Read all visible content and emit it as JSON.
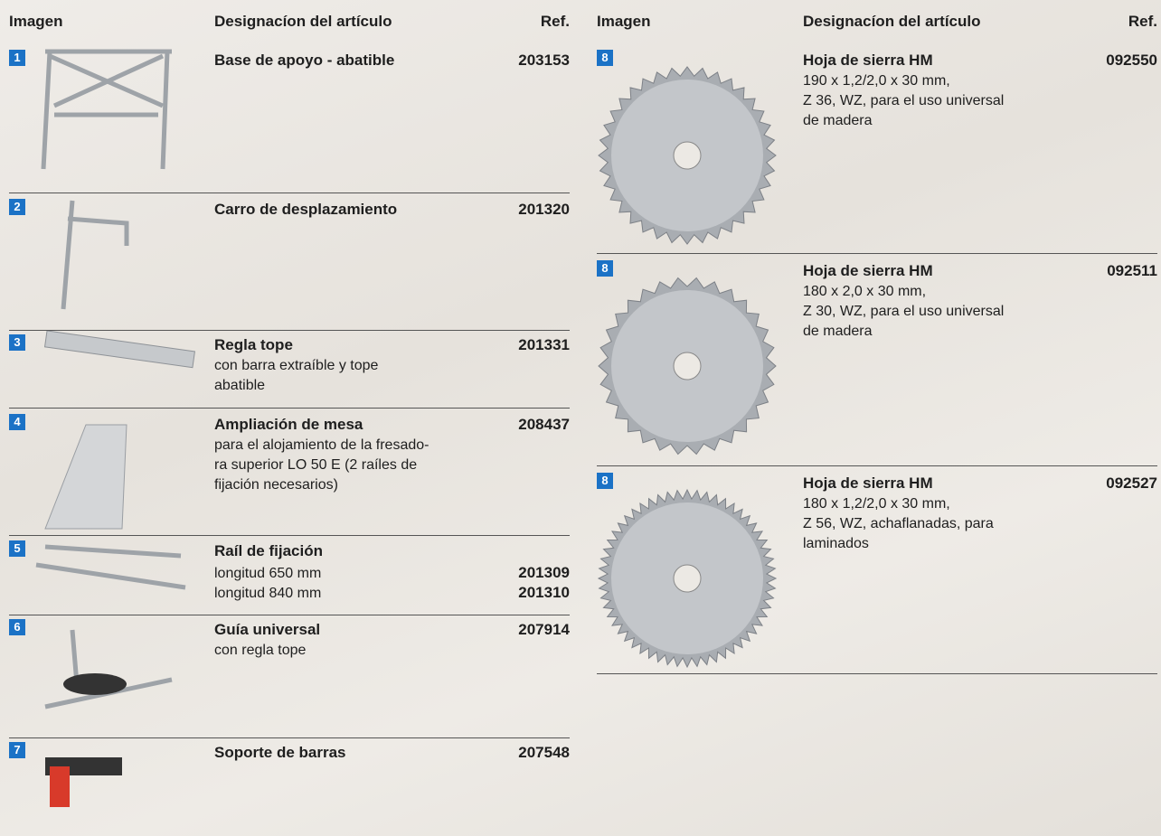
{
  "left": {
    "headers": [
      "Imagen",
      "Designacíon del artículo",
      "Ref."
    ],
    "items": [
      {
        "number": "1",
        "name": "Base de apoyo - abatible",
        "ref": "203153"
      },
      {
        "number": "2",
        "name": "Carro de desplazamiento",
        "ref": "201320"
      },
      {
        "number": "3",
        "name": "Regla tope",
        "ref": "201331",
        "description": [
          "con barra extraíble y tope",
          "abatible"
        ]
      },
      {
        "number": "4",
        "name": "Ampliación de mesa",
        "ref": "208437",
        "description": [
          "para el alojamiento de la fresado-",
          "ra superior LO 50 E (2 raíles de",
          "fijación necesarios)"
        ]
      },
      {
        "number": "5",
        "name": "Raíl de fijación",
        "variants": [
          {
            "text": "longitud 650 mm",
            "ref": "201309"
          },
          {
            "text": "longitud 840 mm",
            "ref": "201310"
          }
        ]
      },
      {
        "number": "6",
        "name": "Guía universal",
        "ref": "207914",
        "description": [
          "con regla tope"
        ]
      },
      {
        "number": "7",
        "name": "Soporte de barras",
        "ref": "207548"
      }
    ]
  },
  "right": {
    "headers": [
      "Imagen",
      "Designacíon del artículo",
      "Ref."
    ],
    "items": [
      {
        "number": "8",
        "name": "Hoja de sierra HM",
        "ref": "092550",
        "description": [
          "190 x 1,2/2,0 x 30 mm,",
          "Z 36, WZ, para el uso universal",
          "de madera"
        ]
      },
      {
        "number": "8",
        "name": "Hoja de sierra HM",
        "ref": "092511",
        "description": [
          "180 x 2,0 x 30 mm,",
          "Z 30, WZ, para el uso universal",
          "de madera"
        ]
      },
      {
        "number": "8",
        "name": "Hoja de sierra HM",
        "ref": "092527",
        "description": [
          "180 x 1,2/2,0 x 30 mm,",
          "Z 56, WZ, achaflanadas, para",
          "laminados"
        ]
      }
    ]
  }
}
